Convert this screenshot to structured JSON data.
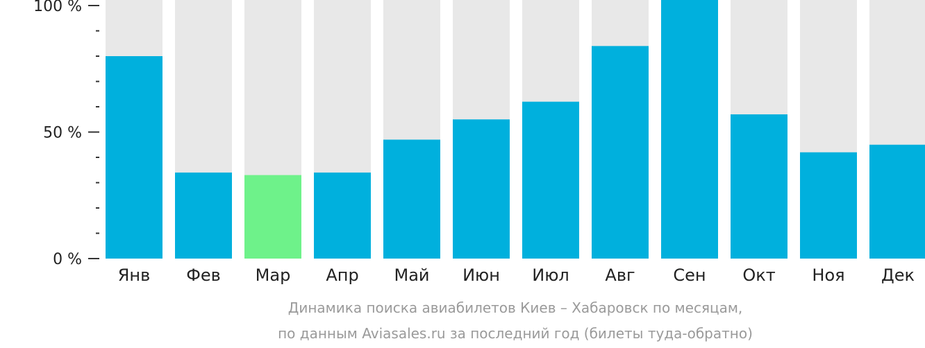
{
  "chart_data": {
    "type": "bar",
    "categories": [
      "Янв",
      "Фев",
      "Мар",
      "Апр",
      "Май",
      "Июн",
      "Июл",
      "Авг",
      "Сен",
      "Окт",
      "Ноя",
      "Дек"
    ],
    "values": [
      80,
      34,
      33,
      34,
      47,
      55,
      62,
      84,
      100,
      57,
      42,
      45
    ],
    "highlight_index": 2,
    "ylim": [
      0,
      100
    ],
    "yticks": [
      {
        "value": 0,
        "label": "0 %"
      },
      {
        "value": 50,
        "label": "50 %"
      },
      {
        "value": 100,
        "label": "100 %"
      }
    ],
    "minor_tick_step": 10,
    "caption_lines": [
      "Динамика поиска авиабилетов Киев – Хабаровск по месяцам,",
      "по данным Aviasales.ru за последний год (билеты туда-обратно)"
    ],
    "colors": {
      "bar": "#00b0dd",
      "highlight": "#6ef28a",
      "track": "#e8e8e8",
      "axis": "#333333",
      "caption": "#9a9a9a"
    }
  }
}
